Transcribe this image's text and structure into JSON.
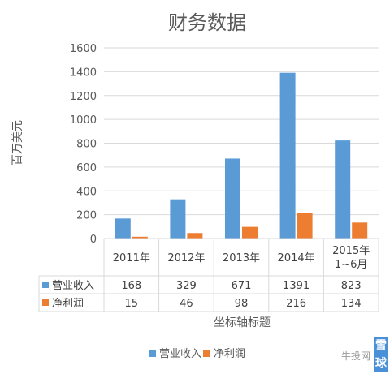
{
  "chart_data": {
    "type": "bar",
    "title": "财务数据",
    "ylabel": "百万美元",
    "xlabel": "坐标轴标题",
    "ylim": [
      0,
      1600
    ],
    "yticks": [
      0,
      200,
      400,
      600,
      800,
      1000,
      1200,
      1400,
      1600
    ],
    "grid": true,
    "legend_position": "bottom",
    "categories": [
      "2011年",
      "2012年",
      "2013年",
      "2014年",
      "2015年\n1~6月"
    ],
    "series": [
      {
        "name": "营业收入",
        "color": "#5b9bd5",
        "values": [
          168,
          329,
          671,
          1391,
          823
        ]
      },
      {
        "name": "净利润",
        "color": "#ed7d31",
        "values": [
          15,
          46,
          98,
          216,
          134
        ]
      }
    ]
  },
  "watermark": {
    "text": "牛投网",
    "badge": "雪球"
  }
}
